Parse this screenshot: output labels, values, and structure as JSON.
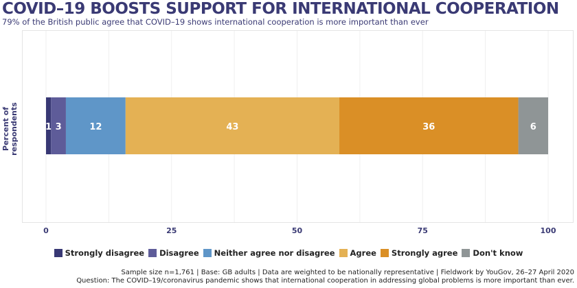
{
  "title": "COVID–19 BOOSTS SUPPORT FOR INTERNATIONAL COOPERATION",
  "subtitle": "79% of the British public agree that COVID–19 shows international cooperation is more important than ever",
  "notes": [
    "Sample size n=1,761 | Base: GB adults | Data are weighted to be nationally representative | Fieldwork by YouGov, 26–27 April 2020",
    "Question: The COVID–19/coronavirus pandemic shows that international cooperation in addressing global problems is more important than ever."
  ],
  "chart_data": {
    "type": "bar",
    "orientation": "horizontal",
    "stacked": true,
    "ylabel": "Percent of respondents",
    "xlim": [
      0,
      100
    ],
    "xticks": [
      0,
      25,
      50,
      75,
      100
    ],
    "grid": true,
    "legend_position": "bottom",
    "series": [
      {
        "name": "Strongly disagree",
        "value": 1,
        "color": "#383874"
      },
      {
        "name": "Disagree",
        "value": 3,
        "color": "#5e5c99"
      },
      {
        "name": "Neither agree nor disagree",
        "value": 12,
        "color": "#5f96c8"
      },
      {
        "name": "Agree",
        "value": 43,
        "color": "#e4b154"
      },
      {
        "name": "Strongly agree",
        "value": 36,
        "color": "#da8f26"
      },
      {
        "name": "Don't know",
        "value": 6,
        "color": "#8f9596"
      }
    ]
  }
}
